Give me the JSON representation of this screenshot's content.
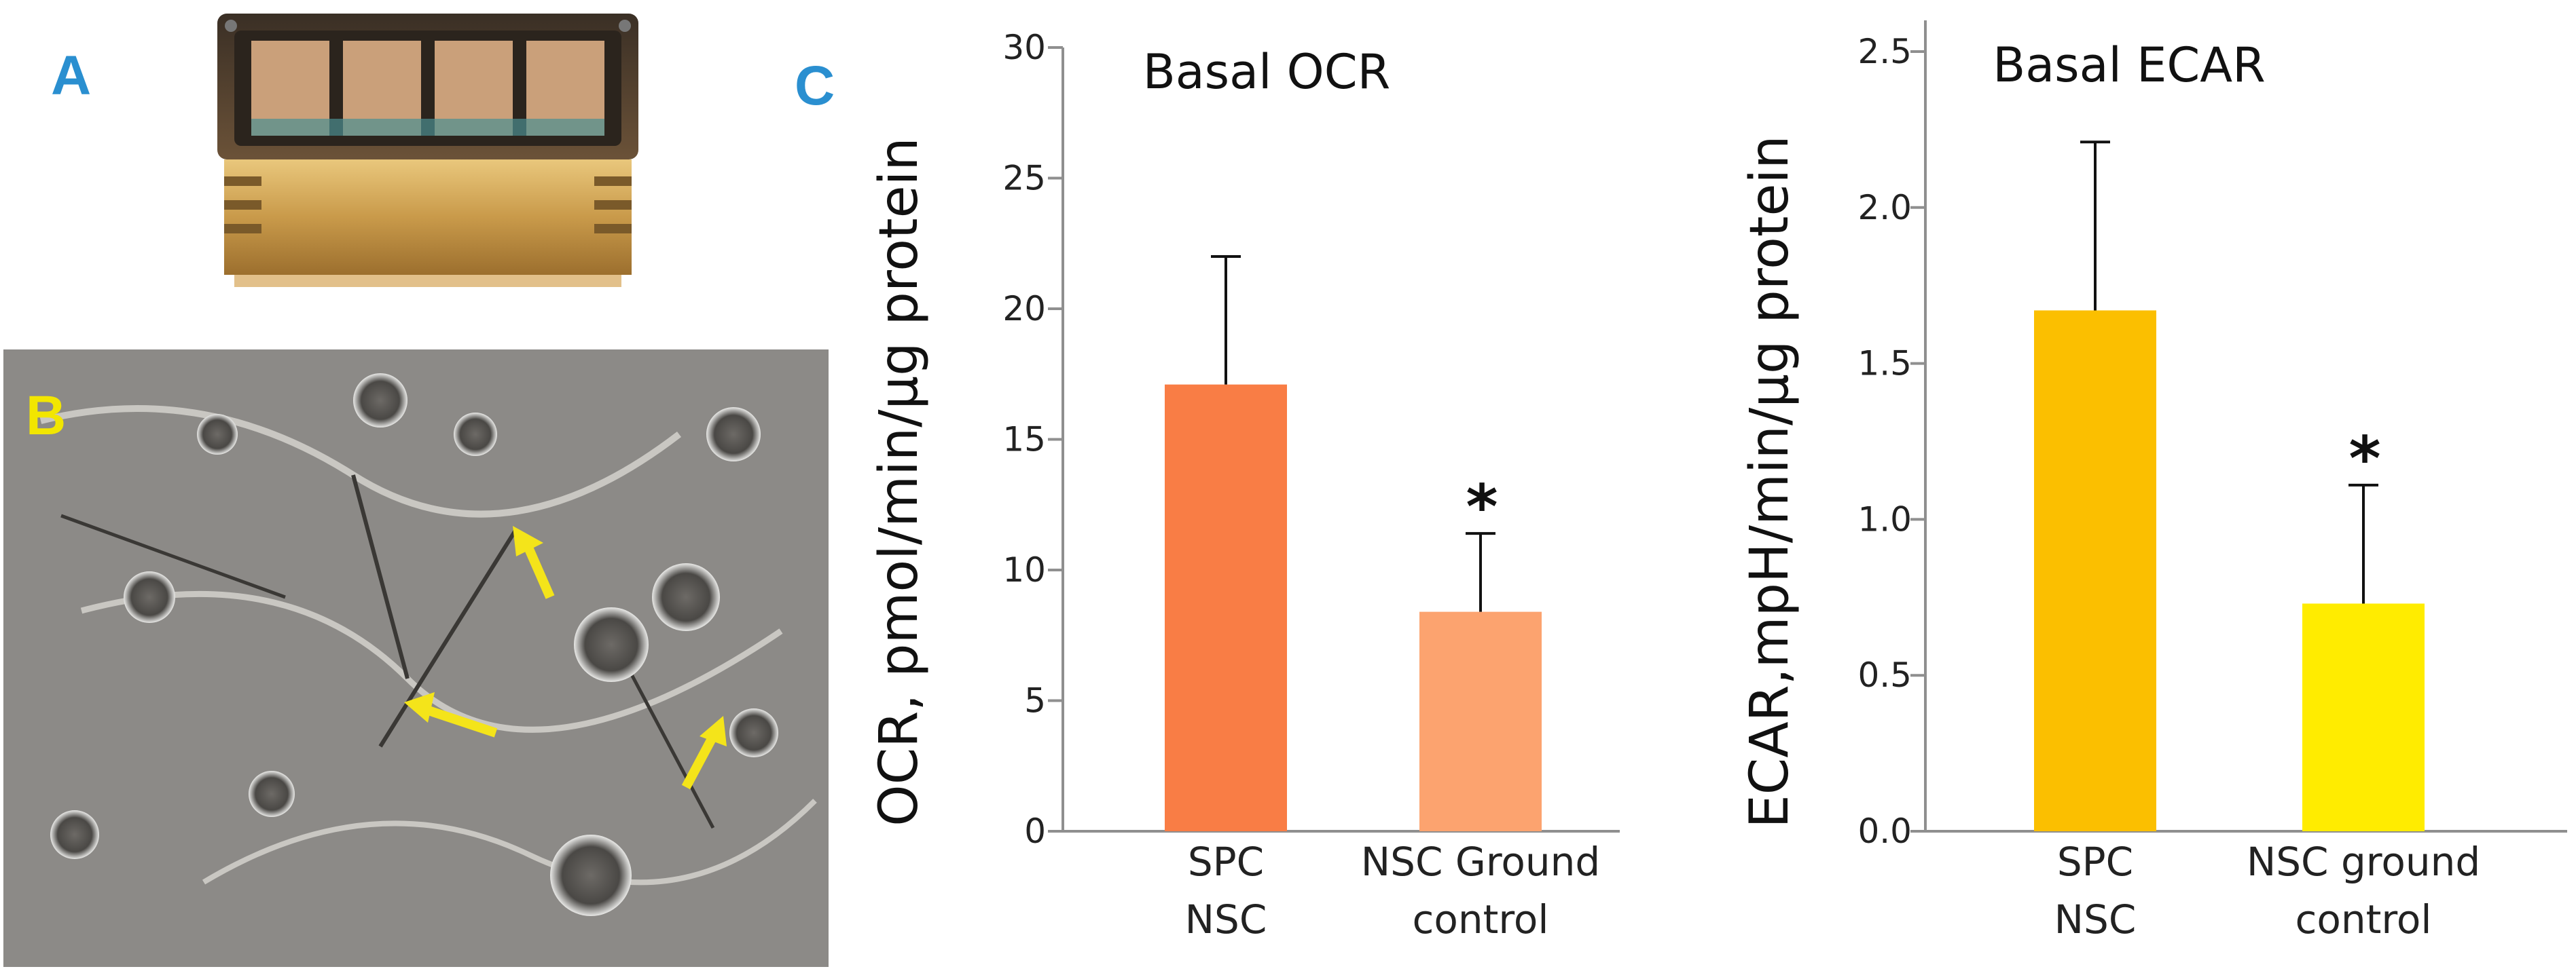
{
  "panels": {
    "a_label": "A",
    "b_label": "B",
    "c_label": "C"
  },
  "colors": {
    "panel_label_blue": "#2a8fd0",
    "panel_label_yellow": "#f2e600",
    "arrow_yellow": "#f4e41a",
    "axis": "#8f8f8f"
  },
  "images": {
    "device_photo": "cell-culture-cassette-icon",
    "micrograph": "phase-contrast-neural-cells-image"
  },
  "chart_data": [
    {
      "type": "bar",
      "title": "Basal OCR",
      "ylabel": "OCR, pmol/min/µg protein",
      "xlabel": "",
      "ylim": [
        0,
        30
      ],
      "yticks": [
        0,
        5,
        10,
        15,
        20,
        25,
        30
      ],
      "ytick_labels": [
        "0",
        "5",
        "10",
        "15",
        "20",
        "25",
        "30"
      ],
      "categories": [
        [
          "SPC",
          "NSC"
        ],
        [
          "NSC Ground",
          "control"
        ]
      ],
      "values": [
        17.1,
        8.4
      ],
      "errors": [
        4.9,
        3.0
      ],
      "bar_colors": [
        "#f97d45",
        "#fca36f"
      ],
      "annotations": [
        "",
        "*"
      ],
      "grid": false
    },
    {
      "type": "bar",
      "title": "Basal ECAR",
      "ylabel": "ECAR,mpH/min/µg protein",
      "xlabel": "",
      "ylim": [
        0,
        2.6
      ],
      "yticks": [
        0.0,
        0.5,
        1.0,
        1.5,
        2.0,
        2.5
      ],
      "ytick_labels": [
        "0.0",
        "0.5",
        "1.0",
        "1.5",
        "2.0",
        "2.5"
      ],
      "categories": [
        [
          "SPC",
          "NSC"
        ],
        [
          "NSC ground",
          "control"
        ]
      ],
      "values": [
        1.67,
        0.73
      ],
      "errors": [
        0.54,
        0.38
      ],
      "bar_colors": [
        "#fbbf00",
        "#ffec00"
      ],
      "annotations": [
        "",
        "*"
      ],
      "grid": false
    }
  ]
}
